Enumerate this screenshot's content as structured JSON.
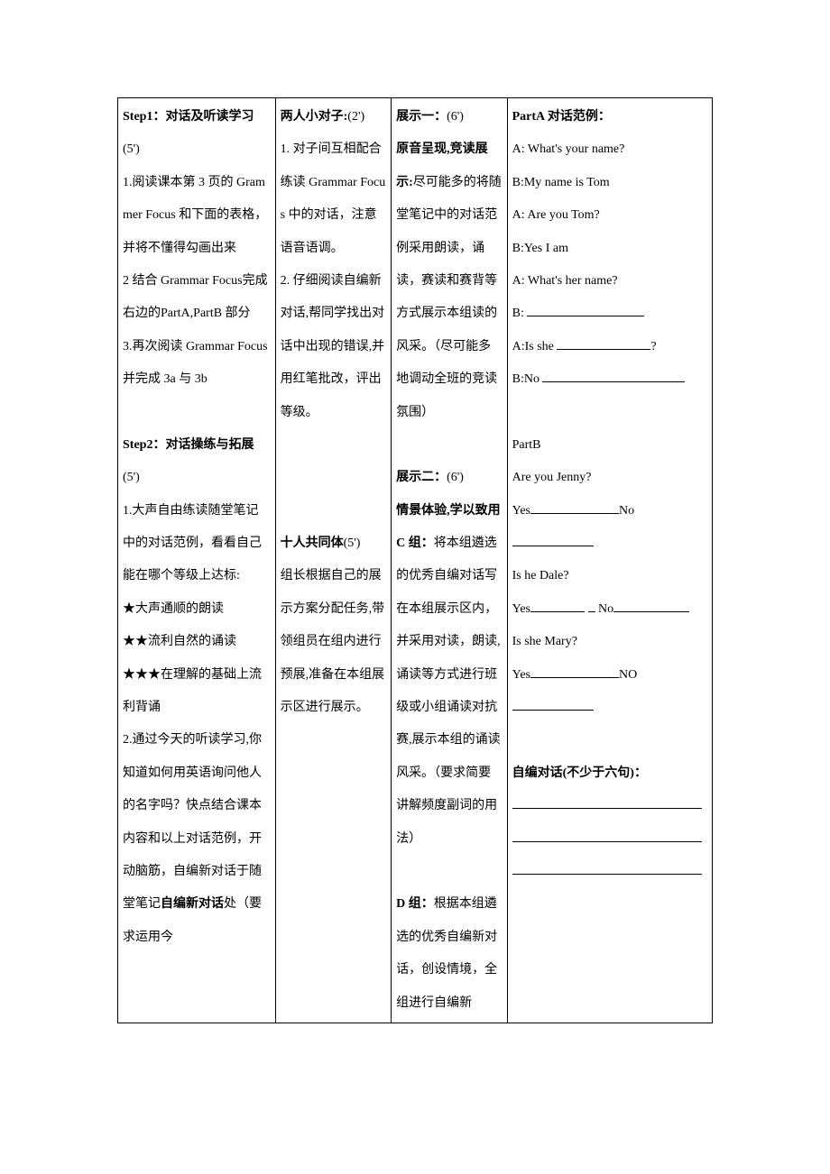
{
  "layout": {
    "columns": 4,
    "border_color": "#000000",
    "background": "#ffffff",
    "font_size_pt": 10.5,
    "line_height": 2.6,
    "col_widths_pct": [
      26.5,
      19.5,
      19.5,
      34.5
    ]
  },
  "col1": {
    "step1_heading": "Step1：对话及听读学习",
    "step1_time": "(5')",
    "step1_item1": "1.阅读课本第 3 页的 Grammer  Focus 和下面的表格，并将不懂得勾画出来",
    "step1_item2": "2 结合 Grammar  Focus完成右边的PartA,PartB 部分",
    "step1_item3": "3.再次阅读 Grammar Focus 并完成 3a 与 3b",
    "step2_heading": "Step2：对话操练与拓展",
    "step2_time": "(5')",
    "step2_item1": "1.大声自由练读随堂笔记中的对话范例，看看自己能在哪个等级上达标:",
    "step2_star1": "★大声通顺的朗读",
    "step2_star2": "★★流利自然的诵读",
    "step2_star3": "★★★在理解的基础上流利背诵",
    "step2_item2_a": "2.通过今天的听读学习,你知道如何用英语询问他人的名字吗？快点结合课本内容和以上对话范例，开动脑筋，自编新对话于随堂笔记",
    "step2_item2_b": "自编新对话",
    "step2_item2_c": "处（要求运用今"
  },
  "col2": {
    "pair_heading": "两人小对子:",
    "pair_time": "(2')",
    "pair_item1": "1. 对子间互相配合练读 Grammar Focus 中的对话，注意语音语调。",
    "pair_item2": "2. 仔细阅读自编新对话,帮同学找出对话中出现的错误,并用红笔批改，评出等级。",
    "ten_heading": "十人共同体",
    "ten_time": "(5')",
    "ten_body": "组长根据自己的展示方案分配任务,带领组员在组内进行预展,准备在本组展示区进行展示。"
  },
  "col3": {
    "show1_heading": "展示一：",
    "show1_time": "(6')",
    "show1_sub": "原音呈现,竞读展示:",
    "show1_body": "尽可能多的将随堂笔记中的对话范例采用朗读，诵读，赛读和赛背等方式展示本组读的风采。（尽可能多地调动全班的竞读氛围）",
    "show2_heading": "展示二：",
    "show2_time": "(6')",
    "show2_sub": "情景体验,学以致用",
    "show2_c_label": "C 组：",
    "show2_c_body": "将本组遴选的优秀自编对话写在本组展示区内，并采用对读，朗读,诵读等方式进行班级或小组诵读对抗赛,展示本组的诵读风采。（要求简要讲解频度副词的用法）",
    "show2_d_label": "D 组：",
    "show2_d_body": "根据本组遴选的优秀自编新对话，创设情境，全组进行自编新"
  },
  "col4": {
    "partA_heading": "PartA 对话范例：",
    "partA_a1": "A: What's your name?",
    "partA_b1": "B:My  name  is  Tom",
    "partA_a2": "A: Are  you  Tom?",
    "partA_b2": "B:Yes  I  am",
    "partA_a3": "A: What's  her  name?",
    "partA_b3_prefix": "B:",
    "partA_a4_prefix": "A:Is  she ",
    "partA_a4_suffix": "?",
    "partA_b4_prefix": "B:No",
    "partB_heading": "PartB",
    "partB_q1": "Are  you  Jenny?",
    "partB_yes": "Yes",
    "partB_no": "No",
    "partB_no_caps": "NO",
    "partB_q2": "Is  he Dale?",
    "partB_q3": "Is  she Mary?",
    "self_heading": "自编对话(不少于六句)：",
    "blank_widths": {
      "b3": 130,
      "a4": 104,
      "b4": 158,
      "yes_long": 98,
      "no_long": 90,
      "yes_short": 60,
      "gap": 8,
      "no_short": 84,
      "full": 210
    }
  }
}
